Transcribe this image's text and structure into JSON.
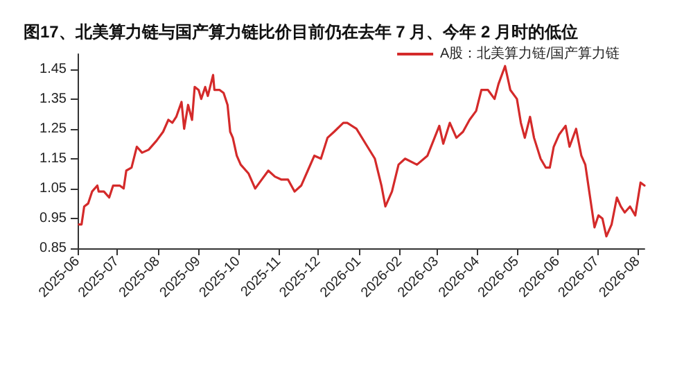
{
  "chart_data": {
    "type": "line",
    "title": "图17、北美算力链与国产算力链比价目前仍在去年 7 月、今年 2 月时的低位",
    "x": [
      "2025-06-02",
      "2025-06-04",
      "2025-06-06",
      "2025-06-09",
      "2025-06-12",
      "2025-06-16",
      "2025-06-17",
      "2025-06-21",
      "2025-06-25",
      "2025-06-28",
      "2025-07-03",
      "2025-07-06",
      "2025-07-08",
      "2025-07-12",
      "2025-07-16",
      "2025-07-20",
      "2025-07-25",
      "2025-07-31",
      "2025-08-05",
      "2025-08-09",
      "2025-08-12",
      "2025-08-15",
      "2025-08-19",
      "2025-08-21",
      "2025-08-24",
      "2025-08-27",
      "2025-08-29",
      "2025-09-01",
      "2025-09-03",
      "2025-09-06",
      "2025-09-08",
      "2025-09-12",
      "2025-09-13",
      "2025-09-17",
      "2025-09-20",
      "2025-09-23",
      "2025-09-25",
      "2025-09-27",
      "2025-09-30",
      "2025-10-03",
      "2025-10-09",
      "2025-10-14",
      "2025-10-19",
      "2025-10-24",
      "2025-10-29",
      "2025-11-03",
      "2025-11-08",
      "2025-11-13",
      "2025-11-18",
      "2025-11-23",
      "2025-11-28",
      "2025-12-03",
      "2025-12-08",
      "2025-12-13",
      "2025-12-20",
      "2025-12-23",
      "2025-12-30",
      "2026-01-06",
      "2026-01-13",
      "2026-01-18",
      "2026-01-21",
      "2026-01-26",
      "2026-01-31",
      "2026-02-05",
      "2026-02-14",
      "2026-02-22",
      "2026-03-03",
      "2026-03-06",
      "2026-03-11",
      "2026-03-16",
      "2026-03-21",
      "2026-03-26",
      "2026-03-31",
      "2026-04-04",
      "2026-04-09",
      "2026-04-14",
      "2026-04-17",
      "2026-04-22",
      "2026-04-26",
      "2026-05-01",
      "2026-05-04",
      "2026-05-07",
      "2026-05-11",
      "2026-05-14",
      "2026-05-19",
      "2026-05-23",
      "2026-05-26",
      "2026-05-29",
      "2026-06-02",
      "2026-06-07",
      "2026-06-10",
      "2026-06-15",
      "2026-06-19",
      "2026-06-22",
      "2026-06-25",
      "2026-06-29",
      "2026-07-02",
      "2026-07-05",
      "2026-07-08",
      "2026-07-12",
      "2026-07-16",
      "2026-07-19",
      "2026-07-22",
      "2026-07-26",
      "2026-07-30",
      "2026-08-03",
      "2026-08-06"
    ],
    "series": [
      {
        "name": "A股：北美算力链/国产算力链",
        "color": "#d42a2a",
        "values": [
          0.93,
          0.93,
          0.99,
          1.0,
          1.04,
          1.06,
          1.04,
          1.04,
          1.02,
          1.06,
          1.06,
          1.05,
          1.11,
          1.12,
          1.19,
          1.17,
          1.18,
          1.21,
          1.24,
          1.28,
          1.27,
          1.29,
          1.34,
          1.25,
          1.33,
          1.28,
          1.39,
          1.38,
          1.35,
          1.39,
          1.36,
          1.43,
          1.38,
          1.38,
          1.37,
          1.33,
          1.24,
          1.22,
          1.16,
          1.13,
          1.1,
          1.05,
          1.08,
          1.11,
          1.09,
          1.08,
          1.08,
          1.04,
          1.06,
          1.11,
          1.16,
          1.15,
          1.22,
          1.24,
          1.27,
          1.27,
          1.25,
          1.2,
          1.15,
          1.06,
          0.99,
          1.04,
          1.13,
          1.15,
          1.13,
          1.16,
          1.26,
          1.2,
          1.27,
          1.22,
          1.24,
          1.28,
          1.31,
          1.38,
          1.38,
          1.35,
          1.4,
          1.46,
          1.38,
          1.35,
          1.27,
          1.22,
          1.29,
          1.22,
          1.15,
          1.12,
          1.12,
          1.19,
          1.23,
          1.26,
          1.19,
          1.25,
          1.16,
          1.13,
          1.04,
          0.92,
          0.96,
          0.95,
          0.89,
          0.93,
          1.02,
          0.99,
          0.97,
          0.99,
          0.96,
          1.07,
          1.06
        ]
      }
    ],
    "xlim": [
      "2025-06-01",
      "2026-08-06"
    ],
    "xticks": [
      "2025-06",
      "2025-07",
      "2025-08",
      "2025-09",
      "2025-10",
      "2025-11",
      "2025-12",
      "2026-01",
      "2026-02",
      "2026-03",
      "2026-04",
      "2026-05",
      "2026-06",
      "2026-07",
      "2026-08"
    ],
    "ylim": [
      0.85,
      1.5
    ],
    "yticks": [
      0.85,
      0.95,
      1.05,
      1.15,
      1.25,
      1.35,
      1.45
    ],
    "legend": "top right",
    "marker": "none",
    "line_style": "solid"
  }
}
